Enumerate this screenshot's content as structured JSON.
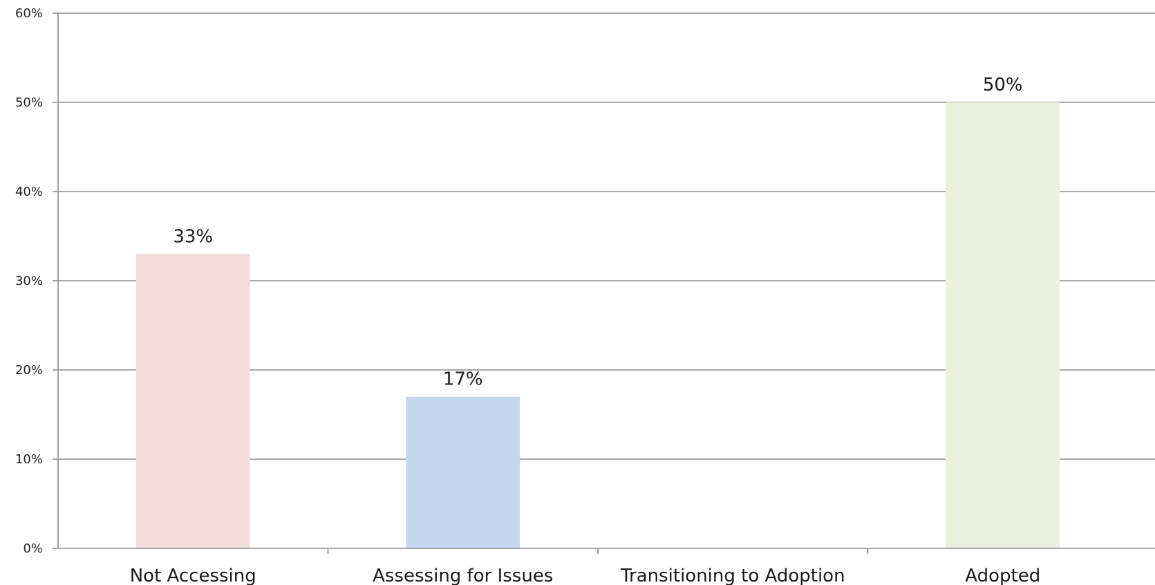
{
  "chart_data": {
    "type": "bar",
    "title": "",
    "xlabel": "",
    "ylabel": "",
    "categories": [
      "Not Accessing",
      "Assessing for Issues",
      "Transitioning to Adoption",
      "Adopted"
    ],
    "values": [
      33,
      17,
      0,
      50
    ],
    "data_labels": [
      "33%",
      "17%",
      "",
      "50%"
    ],
    "bar_colors": [
      "#f2dcdd",
      "#c6d8f0",
      "#ebf0df",
      "#ebf0df"
    ],
    "ylim": [
      0,
      60
    ],
    "y_ticks": [
      0,
      10,
      20,
      30,
      40,
      50,
      60
    ],
    "y_tick_labels": [
      "0%",
      "10%",
      "20%",
      "30%",
      "40%",
      "50%",
      "60%"
    ],
    "grid": true,
    "legend": "none",
    "gridline_color": "#8c8c8c"
  }
}
